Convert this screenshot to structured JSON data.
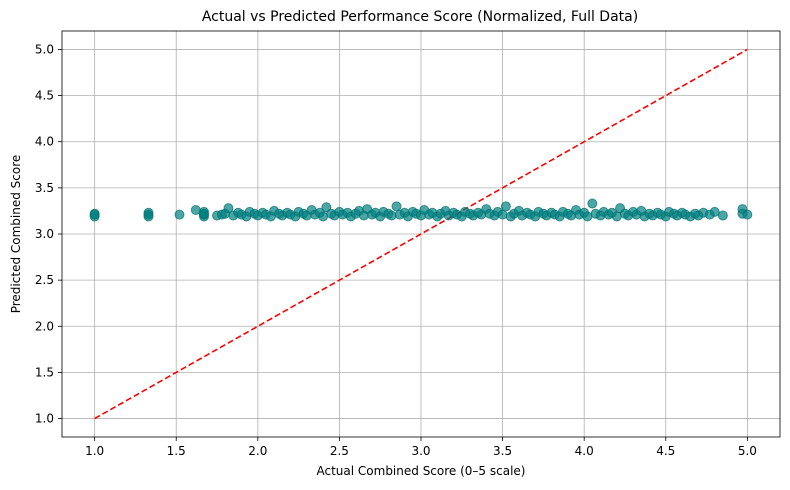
{
  "chart_data": {
    "type": "scatter",
    "title": "Actual vs Predicted Performance Score (Normalized, Full Data)",
    "xlabel": "Actual Combined Score (0–5 scale)",
    "ylabel": "Predicted Combined Score",
    "xlim": [
      0.8,
      5.2
    ],
    "ylim": [
      0.8,
      5.2
    ],
    "xticks": [
      "1.0",
      "1.5",
      "2.0",
      "2.5",
      "3.0",
      "3.5",
      "4.0",
      "4.5",
      "5.0"
    ],
    "yticks": [
      "1.0",
      "1.5",
      "2.0",
      "2.5",
      "3.0",
      "3.5",
      "4.0",
      "4.5",
      "5.0"
    ],
    "grid": true,
    "point_color": "#008080",
    "reference_line": {
      "x": [
        1.0,
        5.0
      ],
      "y": [
        1.0,
        5.0
      ],
      "color": "#ff0000",
      "style": "dashed"
    },
    "points": [
      [
        1.0,
        3.22
      ],
      [
        1.0,
        3.19
      ],
      [
        1.0,
        3.21
      ],
      [
        1.33,
        3.23
      ],
      [
        1.33,
        3.19
      ],
      [
        1.33,
        3.21
      ],
      [
        1.52,
        3.21
      ],
      [
        1.62,
        3.26
      ],
      [
        1.67,
        3.24
      ],
      [
        1.67,
        3.19
      ],
      [
        1.67,
        3.21
      ],
      [
        1.67,
        3.22
      ],
      [
        1.75,
        3.2
      ],
      [
        1.78,
        3.21
      ],
      [
        1.8,
        3.22
      ],
      [
        1.82,
        3.28
      ],
      [
        1.85,
        3.2
      ],
      [
        1.88,
        3.23
      ],
      [
        1.9,
        3.21
      ],
      [
        1.93,
        3.19
      ],
      [
        1.95,
        3.24
      ],
      [
        1.98,
        3.22
      ],
      [
        2.0,
        3.2
      ],
      [
        2.03,
        3.23
      ],
      [
        2.05,
        3.21
      ],
      [
        2.08,
        3.19
      ],
      [
        2.1,
        3.25
      ],
      [
        2.13,
        3.22
      ],
      [
        2.15,
        3.2
      ],
      [
        2.18,
        3.23
      ],
      [
        2.2,
        3.21
      ],
      [
        2.23,
        3.19
      ],
      [
        2.25,
        3.24
      ],
      [
        2.28,
        3.22
      ],
      [
        2.3,
        3.2
      ],
      [
        2.33,
        3.26
      ],
      [
        2.35,
        3.21
      ],
      [
        2.38,
        3.23
      ],
      [
        2.4,
        3.19
      ],
      [
        2.42,
        3.29
      ],
      [
        2.45,
        3.22
      ],
      [
        2.47,
        3.2
      ],
      [
        2.5,
        3.24
      ],
      [
        2.52,
        3.21
      ],
      [
        2.55,
        3.23
      ],
      [
        2.57,
        3.19
      ],
      [
        2.6,
        3.22
      ],
      [
        2.62,
        3.25
      ],
      [
        2.65,
        3.2
      ],
      [
        2.67,
        3.27
      ],
      [
        2.7,
        3.21
      ],
      [
        2.72,
        3.23
      ],
      [
        2.75,
        3.19
      ],
      [
        2.77,
        3.24
      ],
      [
        2.8,
        3.22
      ],
      [
        2.82,
        3.2
      ],
      [
        2.85,
        3.3
      ],
      [
        2.87,
        3.21
      ],
      [
        2.9,
        3.23
      ],
      [
        2.92,
        3.19
      ],
      [
        2.95,
        3.24
      ],
      [
        2.97,
        3.22
      ],
      [
        3.0,
        3.2
      ],
      [
        3.02,
        3.26
      ],
      [
        3.05,
        3.21
      ],
      [
        3.07,
        3.23
      ],
      [
        3.1,
        3.19
      ],
      [
        3.12,
        3.22
      ],
      [
        3.15,
        3.25
      ],
      [
        3.17,
        3.2
      ],
      [
        3.2,
        3.23
      ],
      [
        3.22,
        3.21
      ],
      [
        3.25,
        3.19
      ],
      [
        3.27,
        3.24
      ],
      [
        3.3,
        3.22
      ],
      [
        3.32,
        3.2
      ],
      [
        3.35,
        3.23
      ],
      [
        3.37,
        3.21
      ],
      [
        3.4,
        3.27
      ],
      [
        3.42,
        3.22
      ],
      [
        3.45,
        3.2
      ],
      [
        3.47,
        3.24
      ],
      [
        3.5,
        3.21
      ],
      [
        3.52,
        3.3
      ],
      [
        3.55,
        3.19
      ],
      [
        3.57,
        3.22
      ],
      [
        3.6,
        3.25
      ],
      [
        3.62,
        3.2
      ],
      [
        3.65,
        3.23
      ],
      [
        3.67,
        3.21
      ],
      [
        3.7,
        3.19
      ],
      [
        3.72,
        3.24
      ],
      [
        3.75,
        3.22
      ],
      [
        3.77,
        3.2
      ],
      [
        3.8,
        3.23
      ],
      [
        3.82,
        3.21
      ],
      [
        3.85,
        3.19
      ],
      [
        3.87,
        3.24
      ],
      [
        3.9,
        3.22
      ],
      [
        3.92,
        3.2
      ],
      [
        3.95,
        3.26
      ],
      [
        3.97,
        3.21
      ],
      [
        4.0,
        3.23
      ],
      [
        4.02,
        3.19
      ],
      [
        4.05,
        3.33
      ],
      [
        4.07,
        3.22
      ],
      [
        4.1,
        3.2
      ],
      [
        4.12,
        3.24
      ],
      [
        4.15,
        3.21
      ],
      [
        4.17,
        3.23
      ],
      [
        4.2,
        3.19
      ],
      [
        4.22,
        3.28
      ],
      [
        4.25,
        3.22
      ],
      [
        4.27,
        3.2
      ],
      [
        4.3,
        3.24
      ],
      [
        4.32,
        3.21
      ],
      [
        4.35,
        3.25
      ],
      [
        4.37,
        3.19
      ],
      [
        4.4,
        3.22
      ],
      [
        4.42,
        3.2
      ],
      [
        4.45,
        3.23
      ],
      [
        4.47,
        3.21
      ],
      [
        4.5,
        3.19
      ],
      [
        4.52,
        3.24
      ],
      [
        4.55,
        3.22
      ],
      [
        4.57,
        3.2
      ],
      [
        4.6,
        3.23
      ],
      [
        4.62,
        3.21
      ],
      [
        4.65,
        3.19
      ],
      [
        4.68,
        3.22
      ],
      [
        4.7,
        3.2
      ],
      [
        4.73,
        3.23
      ],
      [
        4.77,
        3.21
      ],
      [
        4.8,
        3.24
      ],
      [
        4.85,
        3.2
      ],
      [
        4.97,
        3.27
      ],
      [
        4.97,
        3.22
      ],
      [
        5.0,
        3.21
      ]
    ]
  }
}
